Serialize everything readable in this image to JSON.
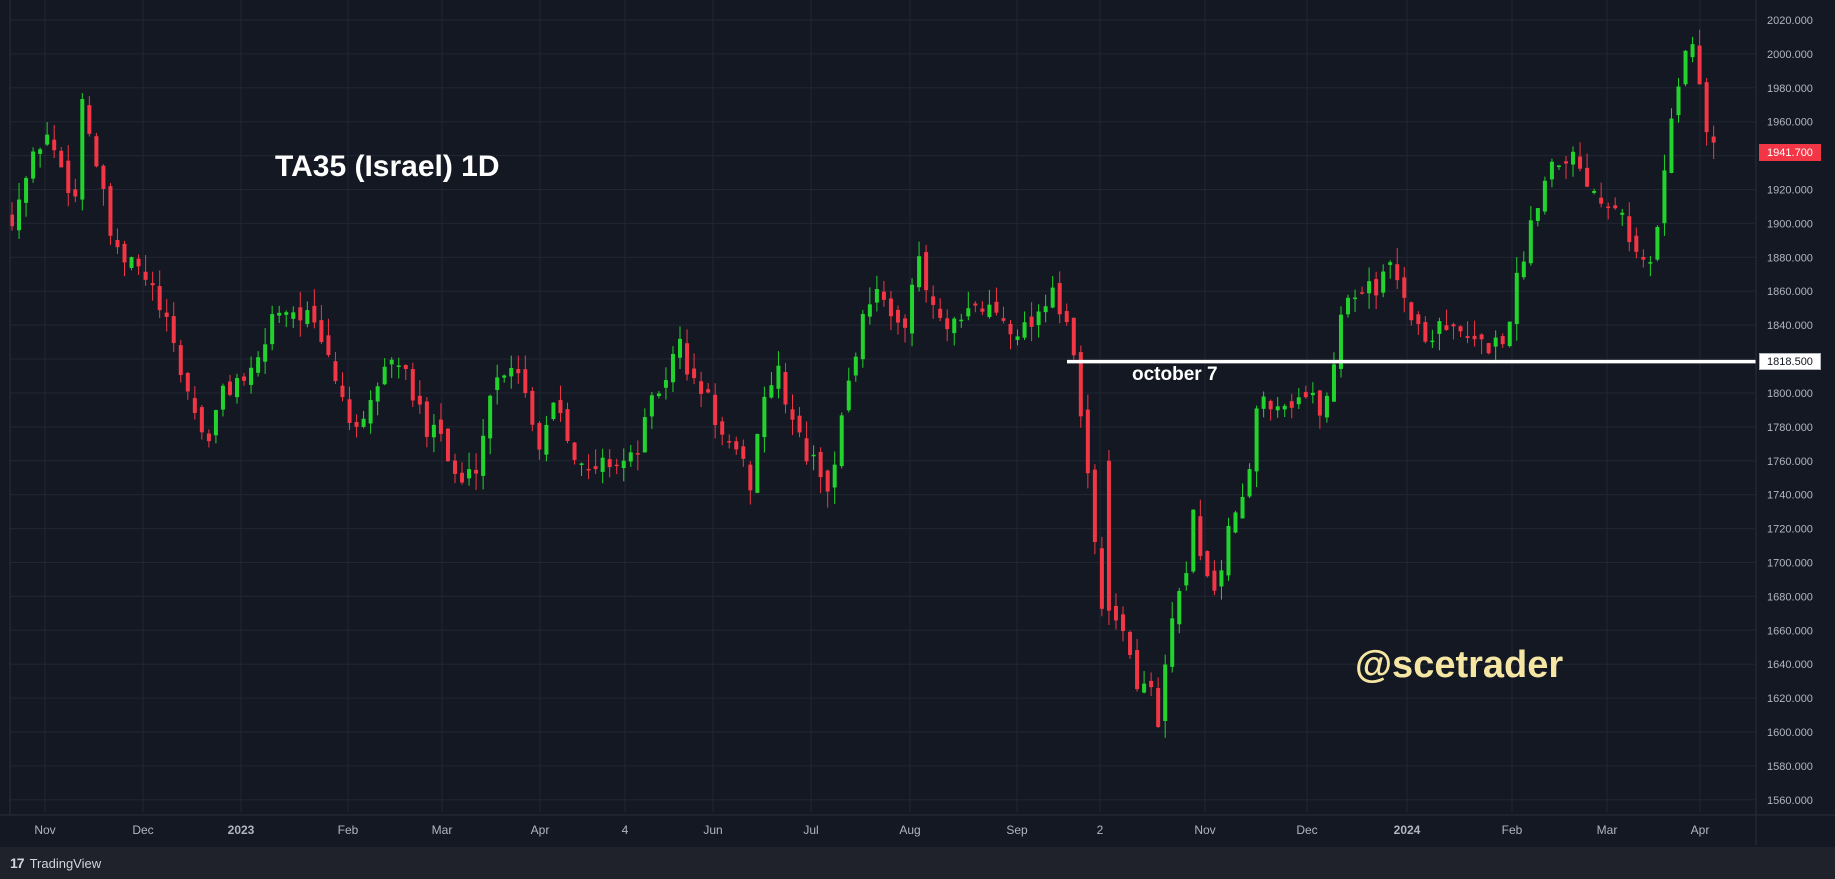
{
  "title": "TA35 (Israel) 1D",
  "watermark": "@scetrader",
  "footer": {
    "logo": "17",
    "brand": "TradingView"
  },
  "annotation": {
    "label": "october 7",
    "level": 1818.5,
    "level_label": "1818.500"
  },
  "last_price": {
    "value": 1941.7,
    "label": "1941.700"
  },
  "colors": {
    "background": "#141823",
    "grid": "#222633",
    "up": "#22d32d",
    "down": "#f23645",
    "axis_text": "#b2b5be",
    "watermark": "#f5e6a3",
    "annotation": "#ffffff"
  },
  "chart_data": {
    "type": "candlestick",
    "title": "TA35 (Israel) 1D",
    "ylim": [
      1545,
      2025
    ],
    "y_ticks": [
      "1560.000",
      "1580.000",
      "1600.000",
      "1620.000",
      "1640.000",
      "1660.000",
      "1680.000",
      "1700.000",
      "1720.000",
      "1740.000",
      "1760.000",
      "1780.000",
      "1800.000",
      "1820.000",
      "1840.000",
      "1860.000",
      "1880.000",
      "1900.000",
      "1920.000",
      "1940.000",
      "1960.000",
      "1980.000",
      "2000.000",
      "2020.000"
    ],
    "x_ticks": [
      "Nov",
      "Dec",
      "2023",
      "Feb",
      "Mar",
      "Apr",
      "4",
      "Jun",
      "Jul",
      "Aug",
      "Sep",
      "2",
      "Nov",
      "Dec",
      "2024",
      "Feb",
      "Mar",
      "Apr"
    ],
    "grid": true,
    "close_path": [
      [
        0,
        1905
      ],
      [
        14,
        1955
      ],
      [
        27,
        1915
      ],
      [
        30,
        1975
      ],
      [
        44,
        1880
      ],
      [
        53,
        1875
      ],
      [
        60,
        1860
      ],
      [
        67,
        1835
      ],
      [
        75,
        1800
      ],
      [
        83,
        1770
      ],
      [
        90,
        1800
      ],
      [
        98,
        1810
      ],
      [
        103,
        1808
      ],
      [
        112,
        1850
      ],
      [
        118,
        1850
      ],
      [
        126,
        1845
      ],
      [
        135,
        1820
      ],
      [
        143,
        1790
      ],
      [
        148,
        1770
      ],
      [
        158,
        1815
      ],
      [
        165,
        1820
      ],
      [
        170,
        1800
      ],
      [
        177,
        1780
      ],
      [
        181,
        1790
      ],
      [
        186,
        1760
      ],
      [
        192,
        1745
      ],
      [
        199,
        1760
      ],
      [
        204,
        1800
      ],
      [
        210,
        1815
      ],
      [
        215,
        1820
      ],
      [
        225,
        1770
      ],
      [
        232,
        1800
      ],
      [
        240,
        1765
      ],
      [
        245,
        1750
      ],
      [
        253,
        1760
      ],
      [
        260,
        1760
      ],
      [
        265,
        1760
      ],
      [
        272,
        1790
      ],
      [
        279,
        1810
      ],
      [
        285,
        1830
      ],
      [
        290,
        1805
      ],
      [
        296,
        1800
      ],
      [
        304,
        1770
      ],
      [
        310,
        1760
      ],
      [
        316,
        1745
      ],
      [
        320,
        1800
      ],
      [
        327,
        1810
      ],
      [
        334,
        1780
      ],
      [
        340,
        1760
      ],
      [
        345,
        1755
      ],
      [
        350,
        1740
      ],
      [
        354,
        1790
      ],
      [
        365,
        1855
      ],
      [
        369,
        1865
      ],
      [
        375,
        1840
      ],
      [
        381,
        1845
      ],
      [
        386,
        1880
      ],
      [
        390,
        1860
      ],
      [
        398,
        1835
      ],
      [
        405,
        1840
      ],
      [
        410,
        1850
      ],
      [
        418,
        1850
      ],
      [
        426,
        1840
      ],
      [
        432,
        1838
      ],
      [
        440,
        1852
      ],
      [
        444,
        1865
      ],
      [
        448,
        1840
      ],
      [
        452,
        1833
      ],
      [
        466,
        1665
      ],
      [
        474,
        1665
      ],
      [
        480,
        1620
      ],
      [
        484,
        1640
      ],
      [
        489,
        1600
      ],
      [
        494,
        1660
      ],
      [
        501,
        1690
      ],
      [
        504,
        1725
      ],
      [
        508,
        1705
      ],
      [
        511,
        1680
      ],
      [
        517,
        1700
      ],
      [
        521,
        1730
      ],
      [
        527,
        1740
      ],
      [
        532,
        1800
      ],
      [
        538,
        1795
      ],
      [
        545,
        1795
      ],
      [
        551,
        1800
      ],
      [
        559,
        1790
      ],
      [
        563,
        1805
      ],
      [
        568,
        1860
      ],
      [
        574,
        1855
      ],
      [
        578,
        1870
      ],
      [
        582,
        1860
      ],
      [
        588,
        1875
      ],
      [
        593,
        1865
      ],
      [
        597,
        1845
      ],
      [
        603,
        1830
      ],
      [
        610,
        1845
      ],
      [
        615,
        1835
      ],
      [
        622,
        1830
      ],
      [
        628,
        1828
      ],
      [
        636,
        1830
      ],
      [
        642,
        1865
      ],
      [
        650,
        1912
      ],
      [
        658,
        1940
      ],
      [
        666,
        1940
      ],
      [
        673,
        1925
      ],
      [
        678,
        1915
      ],
      [
        686,
        1915
      ],
      [
        693,
        1880
      ],
      [
        700,
        1875
      ],
      [
        708,
        1965
      ],
      [
        715,
        2010
      ],
      [
        718,
        2000
      ],
      [
        723,
        1955
      ],
      [
        727,
        1941.7
      ]
    ],
    "sessions_shown": 727,
    "highlight_level": {
      "value": 1818.5,
      "label": "october 7"
    },
    "last_value": 1941.7
  }
}
